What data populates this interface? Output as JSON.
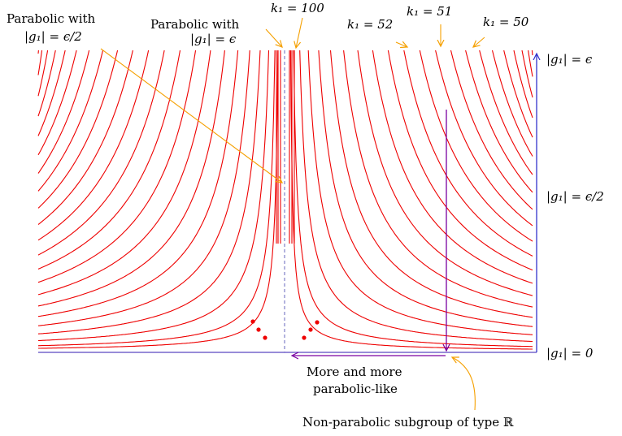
{
  "labels": {
    "parabolic_half": {
      "line1": "Parabolic with",
      "line2": "|g₁| = ϵ/2"
    },
    "parabolic_eps": {
      "line1": "Parabolic with",
      "line2": "|g₁| = ϵ"
    },
    "k100": "k₁ = 100",
    "k52": "k₁ = 52",
    "k51": "k₁ = 51",
    "k50": "k₁ = 50",
    "g_eps": "|g₁| = ϵ",
    "g_half": "|g₁| = ϵ/2",
    "g_zero": "|g₁| = 0",
    "more_parabolic": {
      "line1": "More and more",
      "line2": "parabolic-like"
    },
    "nonparabolic": "Non-parabolic subgroup of type ℝ"
  },
  "colors": {
    "curve": "#ee0000",
    "axis": "#7766cc",
    "blue_arrow": "#3333cc",
    "purple": "#7a00a0",
    "annotation": "#f5a000",
    "dashed": "#8888cc",
    "dots": "#ee0000"
  },
  "curve_family": {
    "count_per_side": 22,
    "note_dots": "..."
  }
}
